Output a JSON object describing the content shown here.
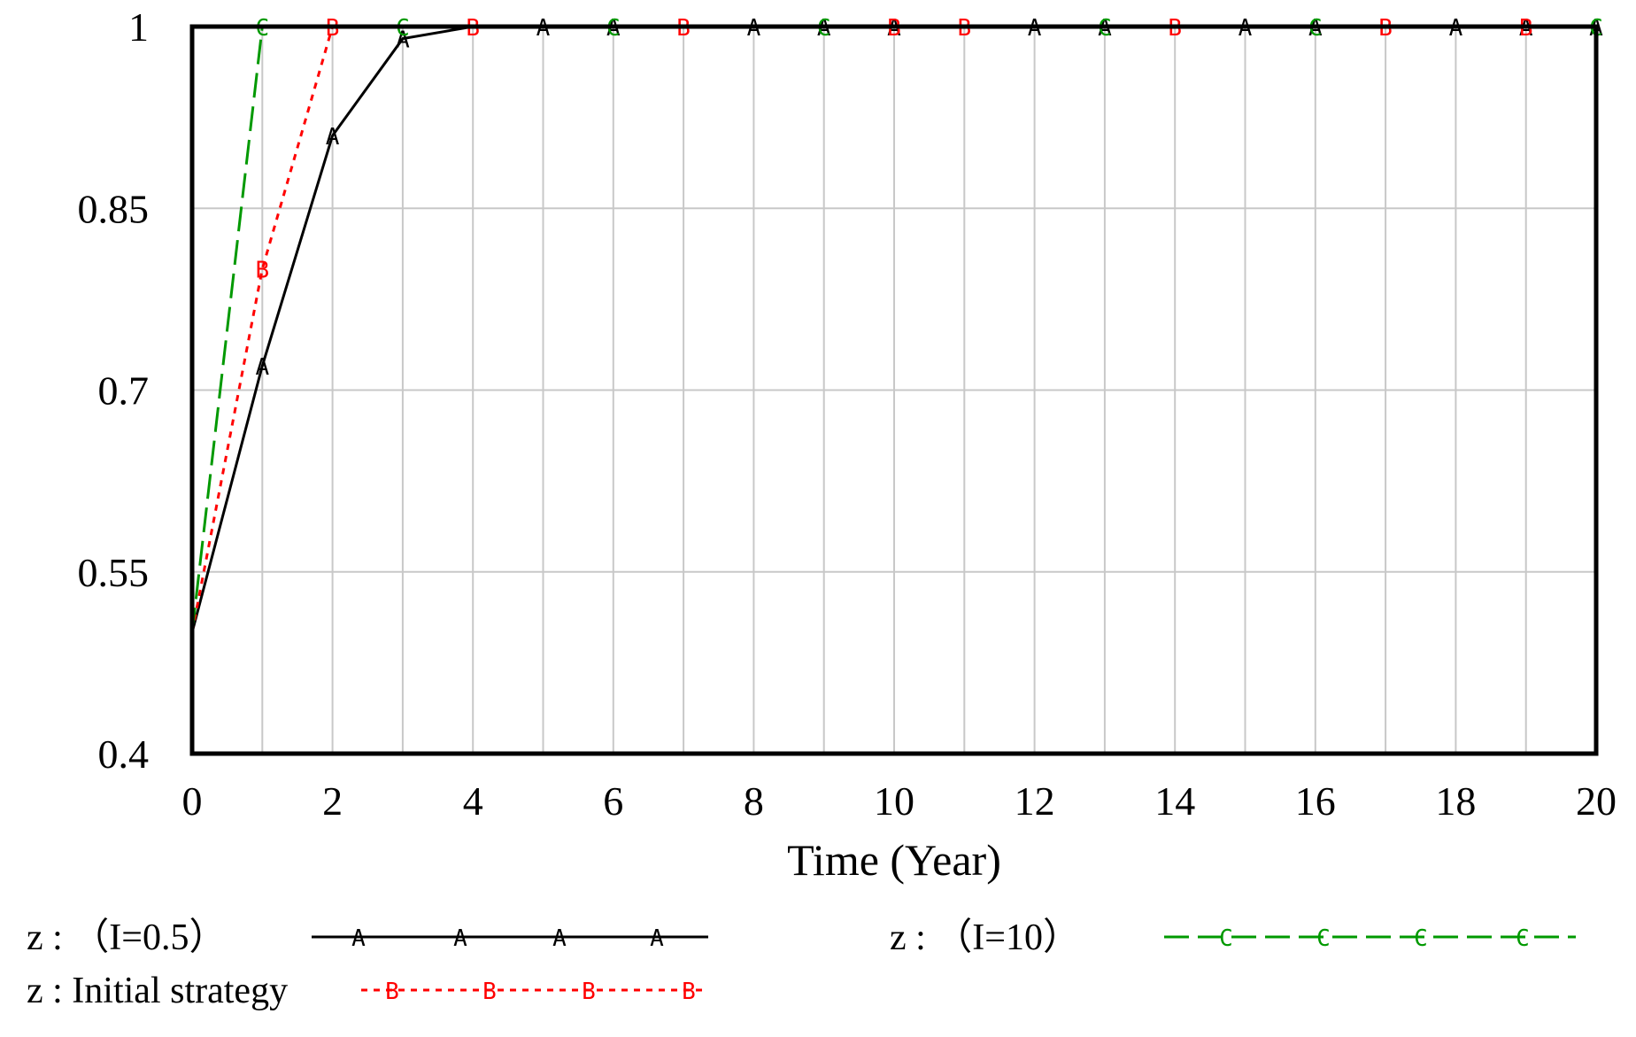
{
  "chart_data": {
    "type": "line",
    "title": "",
    "xlabel": "Time (Year)",
    "ylabel": "",
    "xlim": [
      0,
      20
    ],
    "ylim": [
      0.4,
      1
    ],
    "x_ticks": [
      "0",
      "2",
      "4",
      "6",
      "8",
      "10",
      "12",
      "14",
      "16",
      "18",
      "20"
    ],
    "y_ticks": [
      "0.4",
      "0.55",
      "0.7",
      "0.85",
      "1"
    ],
    "grid": true,
    "legend_position": "bottom",
    "series": [
      {
        "name": "z : （I=0.5）",
        "marker": "A",
        "color": "#000000",
        "dash": "solid",
        "x": [
          0,
          1,
          2,
          3,
          4,
          5,
          6,
          7,
          8,
          9,
          10,
          11,
          12,
          13,
          14,
          15,
          16,
          17,
          18,
          19,
          20
        ],
        "values": [
          0.5,
          0.72,
          0.91,
          0.99,
          1,
          1,
          1,
          1,
          1,
          1,
          1,
          1,
          1,
          1,
          1,
          1,
          1,
          1,
          1,
          1,
          1
        ]
      },
      {
        "name": "z : Initial strategy",
        "marker": "B",
        "color": "#ff0000",
        "dash": "dotted",
        "x": [
          0,
          1,
          2,
          3,
          4,
          5,
          6,
          7,
          8,
          9,
          10,
          11,
          12,
          13,
          14,
          15,
          16,
          17,
          18,
          19,
          20
        ],
        "values": [
          0.5,
          0.8,
          1,
          1,
          1,
          1,
          1,
          1,
          1,
          1,
          1,
          1,
          1,
          1,
          1,
          1,
          1,
          1,
          1,
          1,
          1
        ]
      },
      {
        "name": "z : （I=10）",
        "marker": "C",
        "color": "#009900",
        "dash": "dashed",
        "x": [
          0,
          1,
          2,
          3,
          4,
          5,
          6,
          7,
          8,
          9,
          10,
          11,
          12,
          13,
          14,
          15,
          16,
          17,
          18,
          19,
          20
        ],
        "values": [
          0.5,
          1,
          1,
          1,
          1,
          1,
          1,
          1,
          1,
          1,
          1,
          1,
          1,
          1,
          1,
          1,
          1,
          1,
          1,
          1,
          1
        ]
      }
    ]
  }
}
